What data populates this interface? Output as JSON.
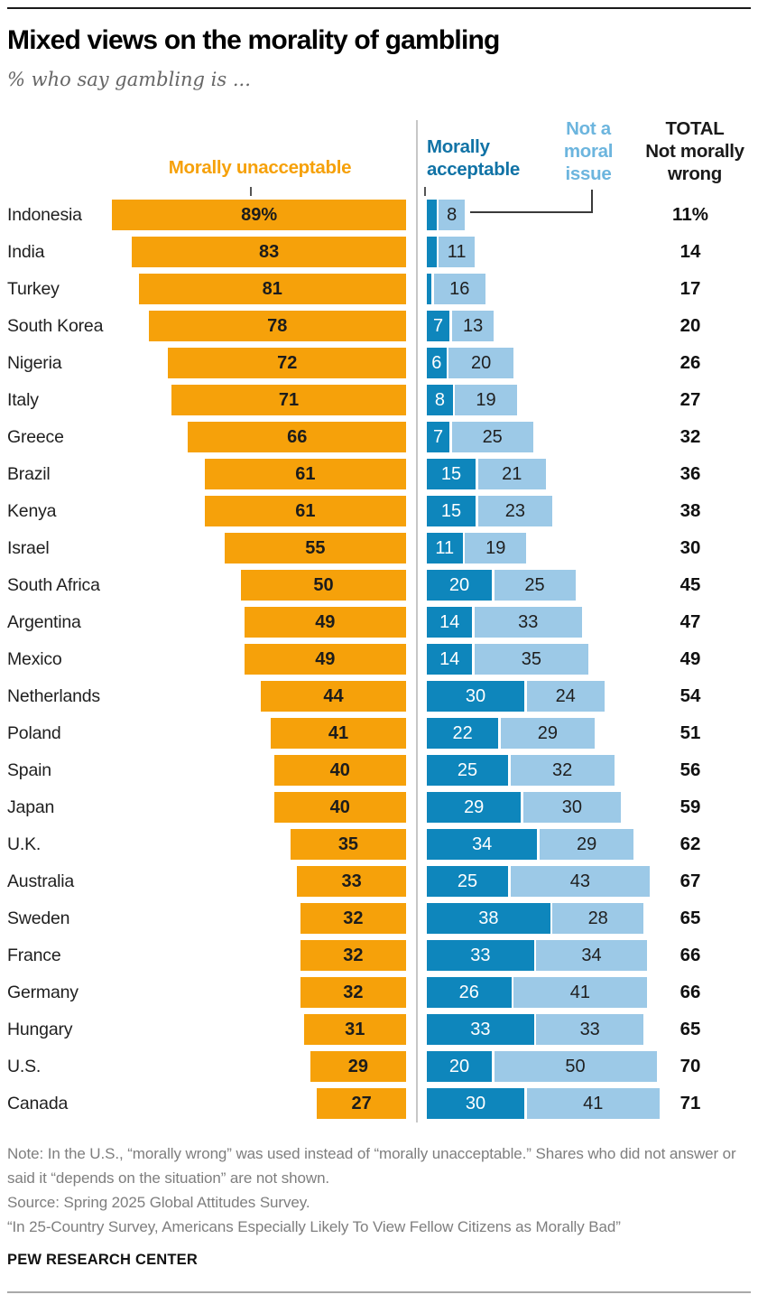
{
  "header": {
    "title": "Mixed views on the morality of gambling",
    "subtitle": "% who say gambling is ..."
  },
  "legend": {
    "unacceptable": "Morally unacceptable",
    "acceptable": "Morally\nacceptable",
    "not_moral": "Not a\nmoral\nissue",
    "total": "TOTAL\nNot morally\nwrong"
  },
  "colors": {
    "orange": "#F6A10A",
    "dark_blue": "#0E86BC",
    "light_blue": "#9CC9E7",
    "legend_dark_blue_text": "#1173A6",
    "legend_light_blue_text": "#6CB5DE"
  },
  "chart_data": {
    "type": "bar",
    "orientation": "horizontal-diverging",
    "units": "%",
    "title": "Mixed views on the morality of gambling",
    "subtitle": "% who say gambling is ...",
    "series_names": [
      "Morally unacceptable",
      "Morally acceptable",
      "Not a moral issue",
      "TOTAL Not morally wrong"
    ],
    "rows": [
      {
        "country": "Indonesia",
        "unacceptable": 89,
        "unacceptable_label": "89%",
        "acceptable": 3,
        "acceptable_label": "",
        "not_moral": 8,
        "not_moral_label": "8",
        "total": 11,
        "total_label": "11%"
      },
      {
        "country": "India",
        "unacceptable": 83,
        "unacceptable_label": "83",
        "acceptable": 3,
        "acceptable_label": "",
        "not_moral": 11,
        "not_moral_label": "11",
        "total": 14,
        "total_label": "14"
      },
      {
        "country": "Turkey",
        "unacceptable": 81,
        "unacceptable_label": "81",
        "acceptable": 1,
        "acceptable_label": "",
        "not_moral": 16,
        "not_moral_label": "16",
        "total": 17,
        "total_label": "17"
      },
      {
        "country": "South Korea",
        "unacceptable": 78,
        "unacceptable_label": "78",
        "acceptable": 7,
        "acceptable_label": "7",
        "not_moral": 13,
        "not_moral_label": "13",
        "total": 20,
        "total_label": "20"
      },
      {
        "country": "Nigeria",
        "unacceptable": 72,
        "unacceptable_label": "72",
        "acceptable": 6,
        "acceptable_label": "6",
        "not_moral": 20,
        "not_moral_label": "20",
        "total": 26,
        "total_label": "26"
      },
      {
        "country": "Italy",
        "unacceptable": 71,
        "unacceptable_label": "71",
        "acceptable": 8,
        "acceptable_label": "8",
        "not_moral": 19,
        "not_moral_label": "19",
        "total": 27,
        "total_label": "27"
      },
      {
        "country": "Greece",
        "unacceptable": 66,
        "unacceptable_label": "66",
        "acceptable": 7,
        "acceptable_label": "7",
        "not_moral": 25,
        "not_moral_label": "25",
        "total": 32,
        "total_label": "32"
      },
      {
        "country": "Brazil",
        "unacceptable": 61,
        "unacceptable_label": "61",
        "acceptable": 15,
        "acceptable_label": "15",
        "not_moral": 21,
        "not_moral_label": "21",
        "total": 36,
        "total_label": "36"
      },
      {
        "country": "Kenya",
        "unacceptable": 61,
        "unacceptable_label": "61",
        "acceptable": 15,
        "acceptable_label": "15",
        "not_moral": 23,
        "not_moral_label": "23",
        "total": 38,
        "total_label": "38"
      },
      {
        "country": "Israel",
        "unacceptable": 55,
        "unacceptable_label": "55",
        "acceptable": 11,
        "acceptable_label": "11",
        "not_moral": 19,
        "not_moral_label": "19",
        "total": 30,
        "total_label": "30"
      },
      {
        "country": "South Africa",
        "unacceptable": 50,
        "unacceptable_label": "50",
        "acceptable": 20,
        "acceptable_label": "20",
        "not_moral": 25,
        "not_moral_label": "25",
        "total": 45,
        "total_label": "45"
      },
      {
        "country": "Argentina",
        "unacceptable": 49,
        "unacceptable_label": "49",
        "acceptable": 14,
        "acceptable_label": "14",
        "not_moral": 33,
        "not_moral_label": "33",
        "total": 47,
        "total_label": "47"
      },
      {
        "country": "Mexico",
        "unacceptable": 49,
        "unacceptable_label": "49",
        "acceptable": 14,
        "acceptable_label": "14",
        "not_moral": 35,
        "not_moral_label": "35",
        "total": 49,
        "total_label": "49"
      },
      {
        "country": "Netherlands",
        "unacceptable": 44,
        "unacceptable_label": "44",
        "acceptable": 30,
        "acceptable_label": "30",
        "not_moral": 24,
        "not_moral_label": "24",
        "total": 54,
        "total_label": "54"
      },
      {
        "country": "Poland",
        "unacceptable": 41,
        "unacceptable_label": "41",
        "acceptable": 22,
        "acceptable_label": "22",
        "not_moral": 29,
        "not_moral_label": "29",
        "total": 51,
        "total_label": "51"
      },
      {
        "country": "Spain",
        "unacceptable": 40,
        "unacceptable_label": "40",
        "acceptable": 25,
        "acceptable_label": "25",
        "not_moral": 32,
        "not_moral_label": "32",
        "total": 56,
        "total_label": "56"
      },
      {
        "country": "Japan",
        "unacceptable": 40,
        "unacceptable_label": "40",
        "acceptable": 29,
        "acceptable_label": "29",
        "not_moral": 30,
        "not_moral_label": "30",
        "total": 59,
        "total_label": "59"
      },
      {
        "country": "U.K.",
        "unacceptable": 35,
        "unacceptable_label": "35",
        "acceptable": 34,
        "acceptable_label": "34",
        "not_moral": 29,
        "not_moral_label": "29",
        "total": 62,
        "total_label": "62"
      },
      {
        "country": "Australia",
        "unacceptable": 33,
        "unacceptable_label": "33",
        "acceptable": 25,
        "acceptable_label": "25",
        "not_moral": 43,
        "not_moral_label": "43",
        "total": 67,
        "total_label": "67"
      },
      {
        "country": "Sweden",
        "unacceptable": 32,
        "unacceptable_label": "32",
        "acceptable": 38,
        "acceptable_label": "38",
        "not_moral": 28,
        "not_moral_label": "28",
        "total": 65,
        "total_label": "65"
      },
      {
        "country": "France",
        "unacceptable": 32,
        "unacceptable_label": "32",
        "acceptable": 33,
        "acceptable_label": "33",
        "not_moral": 34,
        "not_moral_label": "34",
        "total": 66,
        "total_label": "66"
      },
      {
        "country": "Germany",
        "unacceptable": 32,
        "unacceptable_label": "32",
        "acceptable": 26,
        "acceptable_label": "26",
        "not_moral": 41,
        "not_moral_label": "41",
        "total": 66,
        "total_label": "66"
      },
      {
        "country": "Hungary",
        "unacceptable": 31,
        "unacceptable_label": "31",
        "acceptable": 33,
        "acceptable_label": "33",
        "not_moral": 33,
        "not_moral_label": "33",
        "total": 65,
        "total_label": "65"
      },
      {
        "country": "U.S.",
        "unacceptable": 29,
        "unacceptable_label": "29",
        "acceptable": 20,
        "acceptable_label": "20",
        "not_moral": 50,
        "not_moral_label": "50",
        "total": 70,
        "total_label": "70"
      },
      {
        "country": "Canada",
        "unacceptable": 27,
        "unacceptable_label": "27",
        "acceptable": 30,
        "acceptable_label": "30",
        "not_moral": 41,
        "not_moral_label": "41",
        "total": 71,
        "total_label": "71"
      }
    ]
  },
  "footer": {
    "note": "Note: In the U.S., “morally wrong” was used instead of “morally unacceptable.” Shares who did not answer or said it “depends on the situation” are not shown.",
    "source": "Source: Spring 2025 Global Attitudes Survey.",
    "report": "“In 25-Country Survey, Americans Especially Likely To View Fellow Citizens as Morally Bad”",
    "brand": "PEW RESEARCH CENTER"
  }
}
